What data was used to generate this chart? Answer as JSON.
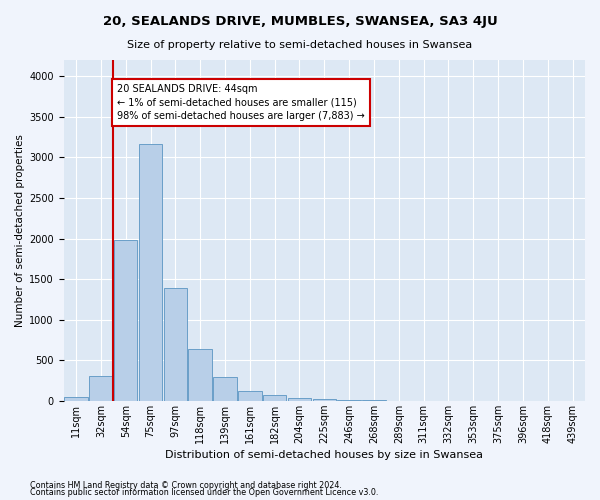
{
  "title": "20, SEALANDS DRIVE, MUMBLES, SWANSEA, SA3 4JU",
  "subtitle": "Size of property relative to semi-detached houses in Swansea",
  "xlabel": "Distribution of semi-detached houses by size in Swansea",
  "ylabel": "Number of semi-detached properties",
  "footnote1": "Contains HM Land Registry data © Crown copyright and database right 2024.",
  "footnote2": "Contains public sector information licensed under the Open Government Licence v3.0.",
  "bin_labels": [
    "11sqm",
    "32sqm",
    "54sqm",
    "75sqm",
    "97sqm",
    "118sqm",
    "139sqm",
    "161sqm",
    "182sqm",
    "204sqm",
    "225sqm",
    "246sqm",
    "268sqm",
    "289sqm",
    "311sqm",
    "332sqm",
    "353sqm",
    "375sqm",
    "396sqm",
    "418sqm",
    "439sqm"
  ],
  "bar_values": [
    50,
    300,
    1980,
    3170,
    1390,
    640,
    290,
    125,
    75,
    40,
    20,
    8,
    5,
    2,
    0,
    0,
    0,
    0,
    0,
    0,
    0
  ],
  "bar_color": "#b8cfe8",
  "bar_edge_color": "#6a9fc8",
  "property_value_bin": 1,
  "property_label": "44",
  "annotation_title": "20 SEALANDS DRIVE: 44sqm",
  "annotation_line1": "← 1% of semi-detached houses are smaller (115)",
  "annotation_line2": "98% of semi-detached houses are larger (7,883) →",
  "annotation_box_color": "#cc0000",
  "vline_color": "#cc0000",
  "fig_bg_color": "#f0f4fc",
  "plot_bg_color": "#dde8f4",
  "ylim": [
    0,
    4200
  ],
  "yticks": [
    0,
    500,
    1000,
    1500,
    2000,
    2500,
    3000,
    3500,
    4000
  ],
  "grid_color": "#ffffff",
  "title_fontsize": 9.5,
  "subtitle_fontsize": 8,
  "ylabel_fontsize": 7.5,
  "xlabel_fontsize": 8,
  "tick_fontsize": 7,
  "footnote_fontsize": 5.8,
  "annotation_fontsize": 7
}
